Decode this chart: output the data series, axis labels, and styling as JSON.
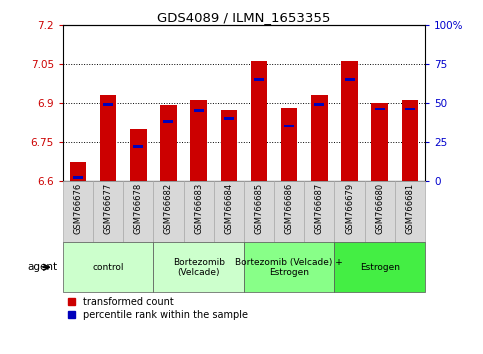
{
  "title": "GDS4089 / ILMN_1653355",
  "samples": [
    "GSM766676",
    "GSM766677",
    "GSM766678",
    "GSM766682",
    "GSM766683",
    "GSM766684",
    "GSM766685",
    "GSM766686",
    "GSM766687",
    "GSM766679",
    "GSM766680",
    "GSM766681"
  ],
  "red_values": [
    6.67,
    6.93,
    6.8,
    6.89,
    6.91,
    6.87,
    7.06,
    6.88,
    6.93,
    7.06,
    6.9,
    6.91
  ],
  "blue_percentiles": [
    2,
    49,
    22,
    38,
    45,
    40,
    65,
    35,
    49,
    65,
    46,
    46
  ],
  "ymin": 6.6,
  "ymax": 7.2,
  "left_yticks": [
    6.6,
    6.75,
    6.9,
    7.05,
    7.2
  ],
  "right_yticks": [
    0,
    25,
    50,
    75,
    100
  ],
  "groups": [
    {
      "label": "control",
      "start": 0,
      "end": 3,
      "color": "#ccffcc"
    },
    {
      "label": "Bortezomib\n(Velcade)",
      "start": 3,
      "end": 6,
      "color": "#ccffcc"
    },
    {
      "label": "Bortezomib (Velcade) +\nEstrogen",
      "start": 6,
      "end": 9,
      "color": "#88ff88"
    },
    {
      "label": "Estrogen",
      "start": 9,
      "end": 12,
      "color": "#44ee44"
    }
  ],
  "bar_color_red": "#cc0000",
  "bar_color_blue": "#0000bb",
  "bar_width": 0.55,
  "agent_label": "agent"
}
